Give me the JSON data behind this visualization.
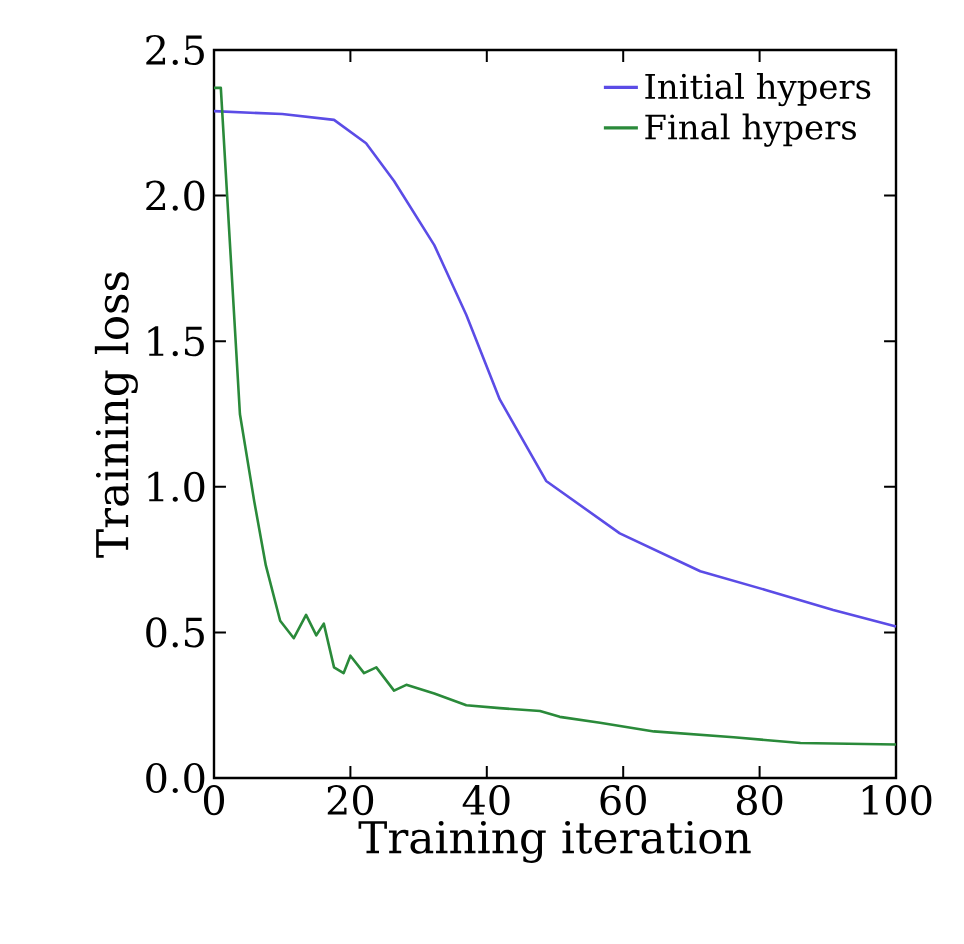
{
  "chart_data": {
    "type": "line",
    "xlabel": "Training iteration",
    "ylabel": "Training loss",
    "xlim": [
      0,
      100
    ],
    "ylim": [
      0,
      2.5
    ],
    "xticks": [
      0,
      20,
      40,
      60,
      80,
      100
    ],
    "yticks": [
      {
        "value": 0,
        "label": "0.0"
      },
      {
        "value": 0.5,
        "label": "0.5"
      },
      {
        "value": 1,
        "label": "1.0"
      },
      {
        "value": 1.5,
        "label": "1.5"
      },
      {
        "value": 2,
        "label": "2.0"
      },
      {
        "value": 2.5,
        "label": "2.5"
      }
    ],
    "grid": false,
    "legend": "top right",
    "line_style": "solid",
    "marker": "none",
    "series": [
      {
        "name": "Initial hypers",
        "color": "#5b4ce6",
        "x": [
          0,
          10,
          17.6,
          22.3,
          26.4,
          32.3,
          37,
          41.9,
          48.7,
          59.5,
          71.3,
          81,
          90.8,
          100
        ],
        "values": [
          2.29,
          2.28,
          2.26,
          2.18,
          2.05,
          1.83,
          1.59,
          1.3,
          1.02,
          0.84,
          0.71,
          0.645,
          0.577,
          0.52
        ]
      },
      {
        "name": "Final hypers",
        "color": "#2a8a3a",
        "x": [
          0,
          1,
          3.8,
          5.9,
          7.6,
          9.7,
          11.7,
          13.5,
          15,
          16.1,
          17.6,
          19,
          20,
          22,
          23.8,
          26.4,
          28.2,
          32.3,
          37,
          41.9,
          47.8,
          50.7,
          56.6,
          64.5,
          76.2,
          86,
          100
        ],
        "values": [
          2.37,
          2.37,
          1.25,
          0.95,
          0.73,
          0.54,
          0.48,
          0.56,
          0.49,
          0.53,
          0.38,
          0.36,
          0.42,
          0.36,
          0.38,
          0.3,
          0.32,
          0.29,
          0.25,
          0.24,
          0.23,
          0.21,
          0.19,
          0.16,
          0.14,
          0.12,
          0.115
        ]
      }
    ]
  }
}
